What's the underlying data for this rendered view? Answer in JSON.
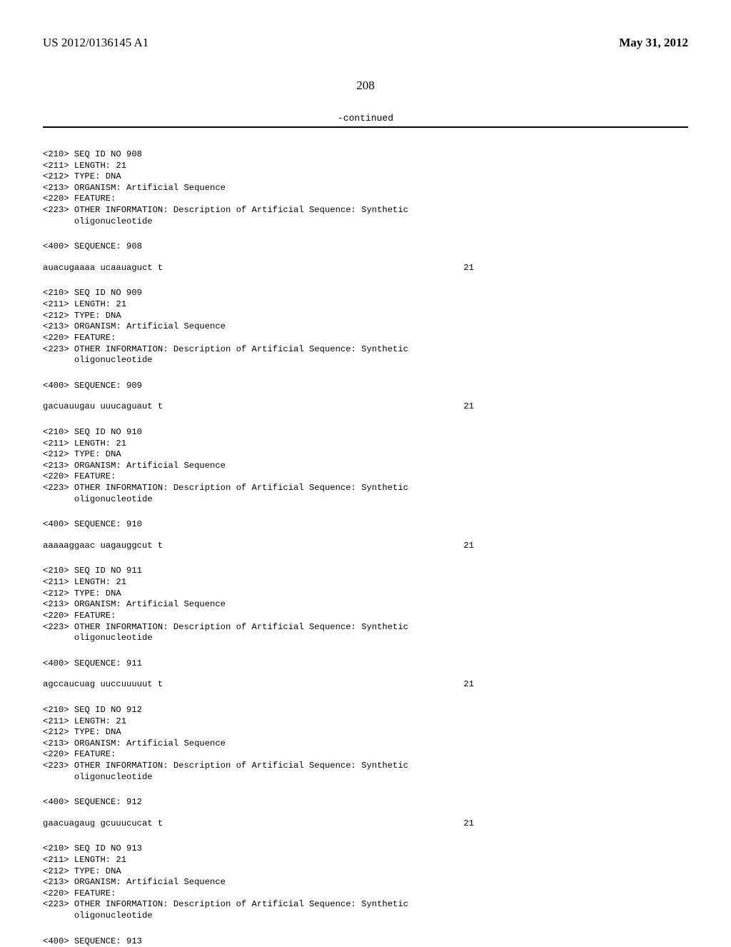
{
  "header": {
    "pub_number": "US 2012/0136145 A1",
    "pub_date": "May 31, 2012"
  },
  "page_number": "208",
  "continued_label": "-continued",
  "entries": [
    {
      "seq_id": "<210> SEQ ID NO 908",
      "length": "<211> LENGTH: 21",
      "type": "<212> TYPE: DNA",
      "organism": "<213> ORGANISM: Artificial Sequence",
      "feature": "<220> FEATURE:",
      "other_info_1": "<223> OTHER INFORMATION: Description of Artificial Sequence: Synthetic",
      "other_info_2": "      oligonucleotide",
      "seq_header": "<400> SEQUENCE: 908",
      "sequence": "auacugaaaa ucaauaguct t",
      "seq_len": "21"
    },
    {
      "seq_id": "<210> SEQ ID NO 909",
      "length": "<211> LENGTH: 21",
      "type": "<212> TYPE: DNA",
      "organism": "<213> ORGANISM: Artificial Sequence",
      "feature": "<220> FEATURE:",
      "other_info_1": "<223> OTHER INFORMATION: Description of Artificial Sequence: Synthetic",
      "other_info_2": "      oligonucleotide",
      "seq_header": "<400> SEQUENCE: 909",
      "sequence": "gacuauugau uuucaguaut t",
      "seq_len": "21"
    },
    {
      "seq_id": "<210> SEQ ID NO 910",
      "length": "<211> LENGTH: 21",
      "type": "<212> TYPE: DNA",
      "organism": "<213> ORGANISM: Artificial Sequence",
      "feature": "<220> FEATURE:",
      "other_info_1": "<223> OTHER INFORMATION: Description of Artificial Sequence: Synthetic",
      "other_info_2": "      oligonucleotide",
      "seq_header": "<400> SEQUENCE: 910",
      "sequence": "aaaaaggaac uagauggcut t",
      "seq_len": "21"
    },
    {
      "seq_id": "<210> SEQ ID NO 911",
      "length": "<211> LENGTH: 21",
      "type": "<212> TYPE: DNA",
      "organism": "<213> ORGANISM: Artificial Sequence",
      "feature": "<220> FEATURE:",
      "other_info_1": "<223> OTHER INFORMATION: Description of Artificial Sequence: Synthetic",
      "other_info_2": "      oligonucleotide",
      "seq_header": "<400> SEQUENCE: 911",
      "sequence": "agccaucuag uuccuuuuut t",
      "seq_len": "21"
    },
    {
      "seq_id": "<210> SEQ ID NO 912",
      "length": "<211> LENGTH: 21",
      "type": "<212> TYPE: DNA",
      "organism": "<213> ORGANISM: Artificial Sequence",
      "feature": "<220> FEATURE:",
      "other_info_1": "<223> OTHER INFORMATION: Description of Artificial Sequence: Synthetic",
      "other_info_2": "      oligonucleotide",
      "seq_header": "<400> SEQUENCE: 912",
      "sequence": "gaacuagaug gcuuucucat t",
      "seq_len": "21"
    },
    {
      "seq_id": "<210> SEQ ID NO 913",
      "length": "<211> LENGTH: 21",
      "type": "<212> TYPE: DNA",
      "organism": "<213> ORGANISM: Artificial Sequence",
      "feature": "<220> FEATURE:",
      "other_info_1": "<223> OTHER INFORMATION: Description of Artificial Sequence: Synthetic",
      "other_info_2": "      oligonucleotide",
      "seq_header": "<400> SEQUENCE: 913",
      "sequence": "",
      "seq_len": ""
    }
  ]
}
